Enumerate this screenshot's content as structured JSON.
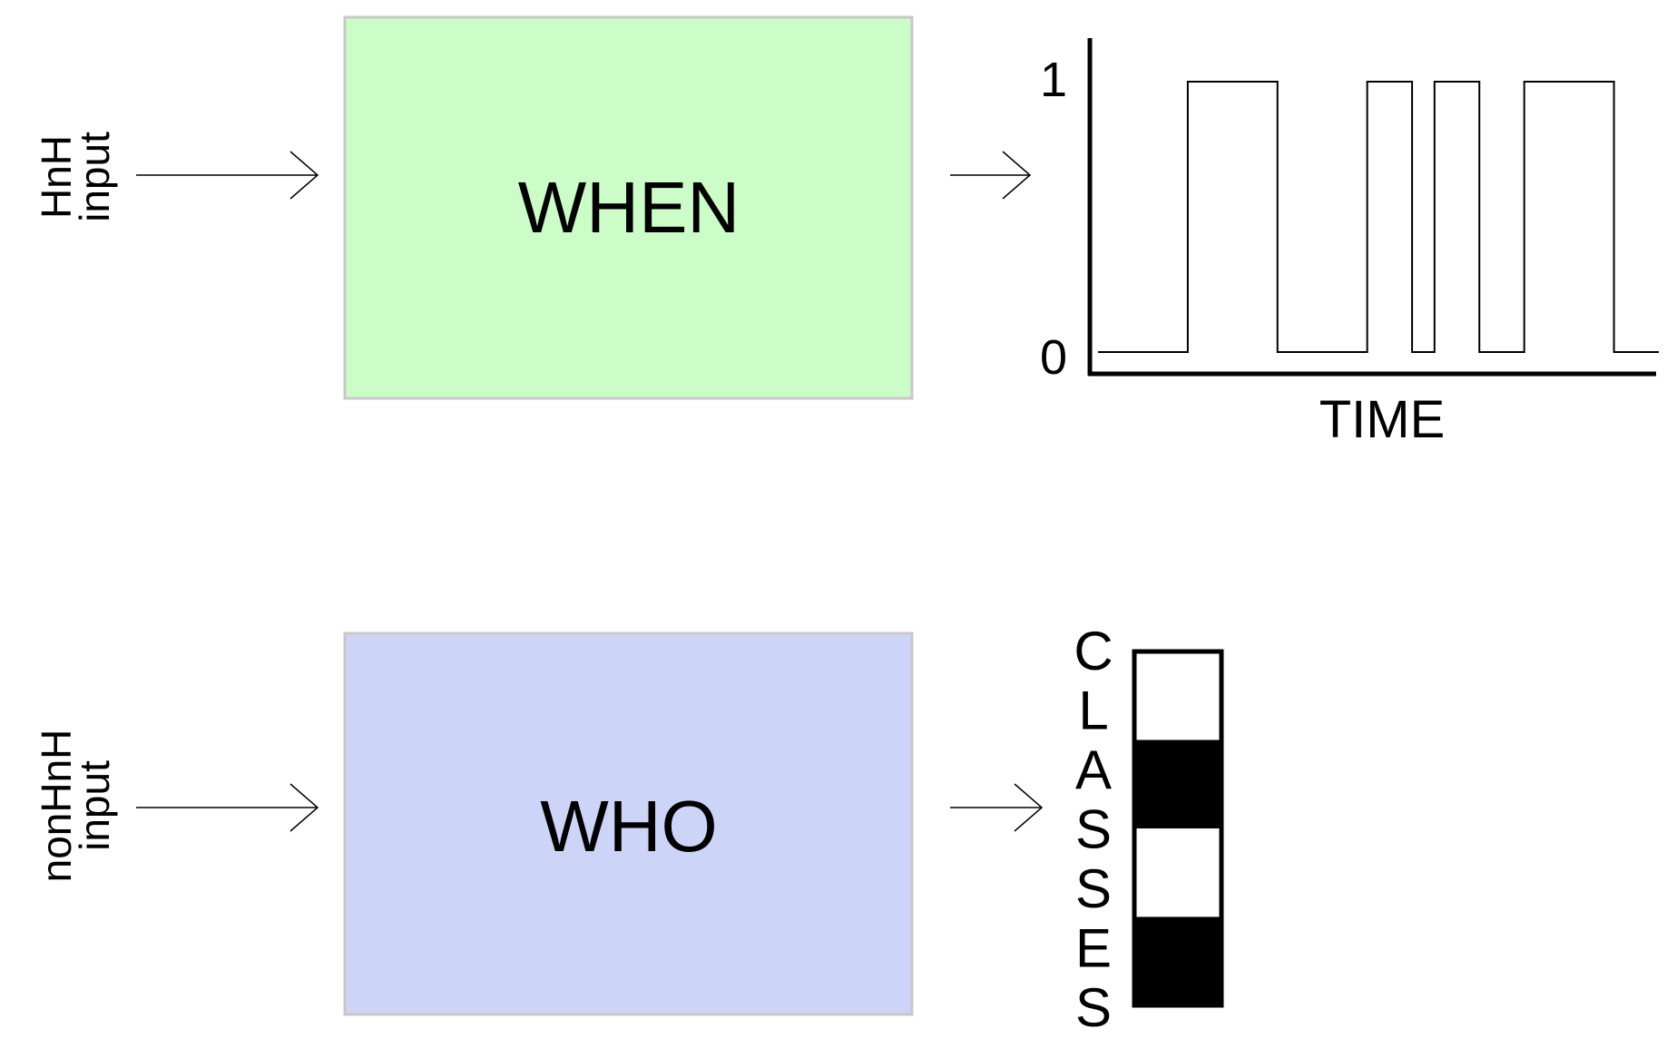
{
  "row_top": {
    "input_label_line1": "input",
    "input_label_line2": "HnH",
    "box_label": "WHEN",
    "box_color": "#ccfdc8"
  },
  "row_bottom": {
    "input_label_line1": "input",
    "input_label_line2": "nonHnH",
    "box_label": "WHO",
    "box_color": "#ccd4f8"
  },
  "box_border_color": "#c8c8c8",
  "signal_plot": {
    "y_high_label": "1",
    "y_low_label": "0",
    "x_axis_label": "TIME",
    "segments": [
      {
        "start": 0.0,
        "end": 0.16,
        "level": 0
      },
      {
        "start": 0.16,
        "end": 0.32,
        "level": 1
      },
      {
        "start": 0.32,
        "end": 0.48,
        "level": 0
      },
      {
        "start": 0.48,
        "end": 0.56,
        "level": 1
      },
      {
        "start": 0.56,
        "end": 0.6,
        "level": 0
      },
      {
        "start": 0.6,
        "end": 0.68,
        "level": 1
      },
      {
        "start": 0.68,
        "end": 0.76,
        "level": 0
      },
      {
        "start": 0.76,
        "end": 0.92,
        "level": 1
      },
      {
        "start": 0.92,
        "end": 1.0,
        "level": 0
      }
    ]
  },
  "classes": {
    "letters": [
      "C",
      "L",
      "A",
      "S",
      "S",
      "E",
      "S"
    ],
    "cells": [
      "white",
      "black",
      "white",
      "black"
    ]
  }
}
